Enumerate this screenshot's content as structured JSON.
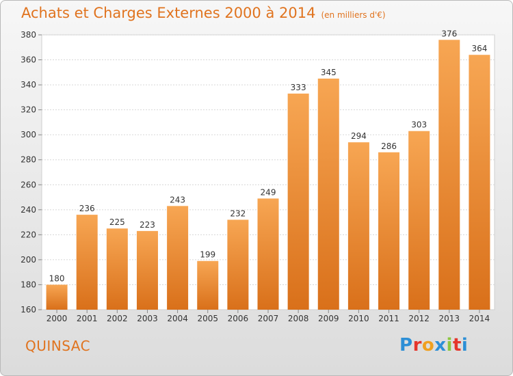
{
  "header": {
    "title": "Achats et Charges Externes 2000 à 2014",
    "subtitle": "(en milliers d'€)"
  },
  "footer": {
    "commune": "QUINSAC",
    "logo": "Proxiti"
  },
  "colors": {
    "bar_light": "#f7a653",
    "bar_dark": "#d9701a",
    "accent": "#e0731e",
    "logo_letters": [
      "#2d8fd6",
      "#e5352b",
      "#f0a020",
      "#2d8fd6",
      "#8cc63f",
      "#e5352b",
      "#2d8fd6"
    ]
  },
  "chart_data": {
    "type": "bar",
    "categories": [
      "2000",
      "2001",
      "2002",
      "2003",
      "2004",
      "2005",
      "2006",
      "2007",
      "2008",
      "2009",
      "2010",
      "2011",
      "2012",
      "2013",
      "2014"
    ],
    "values": [
      180,
      236,
      225,
      223,
      243,
      199,
      232,
      249,
      333,
      345,
      294,
      286,
      303,
      376,
      364
    ],
    "ylim": [
      160,
      380
    ],
    "yticks": [
      160,
      180,
      200,
      220,
      240,
      260,
      280,
      300,
      320,
      340,
      360,
      380
    ],
    "grid": true,
    "data_labels": true
  }
}
